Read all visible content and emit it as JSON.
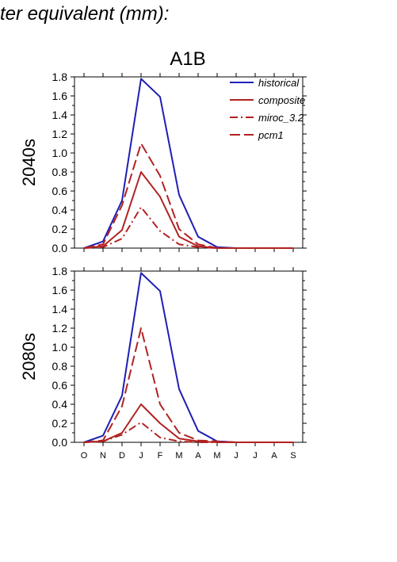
{
  "header": {
    "title": "ter equivalent (mm):"
  },
  "figure": {
    "scenario": "A1B"
  },
  "colors": {
    "historical": "#1f1fb4",
    "model": "#b22222"
  },
  "legend": {
    "position": "top-right",
    "items": [
      {
        "label": "historical",
        "color": "#1f1fb4",
        "style": "solid"
      },
      {
        "label": "composite",
        "color": "#b22222",
        "style": "solid"
      },
      {
        "label": "miroc_3.2",
        "color": "#b22222",
        "style": "dashdot"
      },
      {
        "label": "pcm1",
        "color": "#b22222",
        "style": "dashed"
      }
    ]
  },
  "chart_data": [
    {
      "type": "line",
      "ylabel": "2040s",
      "xlabel": "",
      "categories": [
        "O",
        "N",
        "D",
        "J",
        "F",
        "M",
        "A",
        "M",
        "J",
        "J",
        "A",
        "S"
      ],
      "ylim": [
        0,
        1.8
      ],
      "yticks": [
        "0.0",
        "0.2",
        "0.4",
        "0.6",
        "0.8",
        "1.0",
        "1.2",
        "1.4",
        "1.6",
        "1.8"
      ],
      "series": [
        {
          "name": "historical",
          "style": "solid",
          "color": "#1f1fb4",
          "values": [
            0,
            0.07,
            0.5,
            1.78,
            1.59,
            0.56,
            0.12,
            0.01,
            0,
            0,
            0,
            0
          ]
        },
        {
          "name": "composite",
          "style": "solid",
          "color": "#b22222",
          "values": [
            0,
            0.02,
            0.19,
            0.8,
            0.54,
            0.12,
            0.02,
            0,
            0,
            0,
            0,
            0
          ]
        },
        {
          "name": "miroc_3.2",
          "style": "dashdot",
          "color": "#b22222",
          "values": [
            0,
            0.01,
            0.1,
            0.43,
            0.18,
            0.04,
            0.01,
            0,
            0,
            0,
            0,
            0
          ]
        },
        {
          "name": "pcm1",
          "style": "dashed",
          "color": "#b22222",
          "values": [
            0,
            0.04,
            0.45,
            1.1,
            0.76,
            0.2,
            0.04,
            0,
            0,
            0,
            0,
            0
          ]
        }
      ]
    },
    {
      "type": "line",
      "ylabel": "2080s",
      "xlabel": "",
      "categories": [
        "O",
        "N",
        "D",
        "J",
        "F",
        "M",
        "A",
        "M",
        "J",
        "J",
        "A",
        "S"
      ],
      "ylim": [
        0,
        1.8
      ],
      "yticks": [
        "0.0",
        "0.2",
        "0.4",
        "0.6",
        "0.8",
        "1.0",
        "1.2",
        "1.4",
        "1.6",
        "1.8"
      ],
      "series": [
        {
          "name": "historical",
          "style": "solid",
          "color": "#1f1fb4",
          "values": [
            0,
            0.07,
            0.49,
            1.78,
            1.59,
            0.56,
            0.12,
            0.01,
            0,
            0,
            0,
            0
          ]
        },
        {
          "name": "composite",
          "style": "solid",
          "color": "#b22222",
          "values": [
            0,
            0.01,
            0.1,
            0.4,
            0.2,
            0.04,
            0.01,
            0,
            0,
            0,
            0,
            0
          ]
        },
        {
          "name": "miroc_3.2",
          "style": "dashdot",
          "color": "#b22222",
          "values": [
            0,
            0.01,
            0.08,
            0.21,
            0.05,
            0.01,
            0,
            0,
            0,
            0,
            0,
            0
          ]
        },
        {
          "name": "pcm1",
          "style": "dashed",
          "color": "#b22222",
          "values": [
            0,
            0.02,
            0.38,
            1.2,
            0.4,
            0.1,
            0.02,
            0.01,
            0,
            0,
            0,
            0
          ]
        }
      ]
    }
  ]
}
